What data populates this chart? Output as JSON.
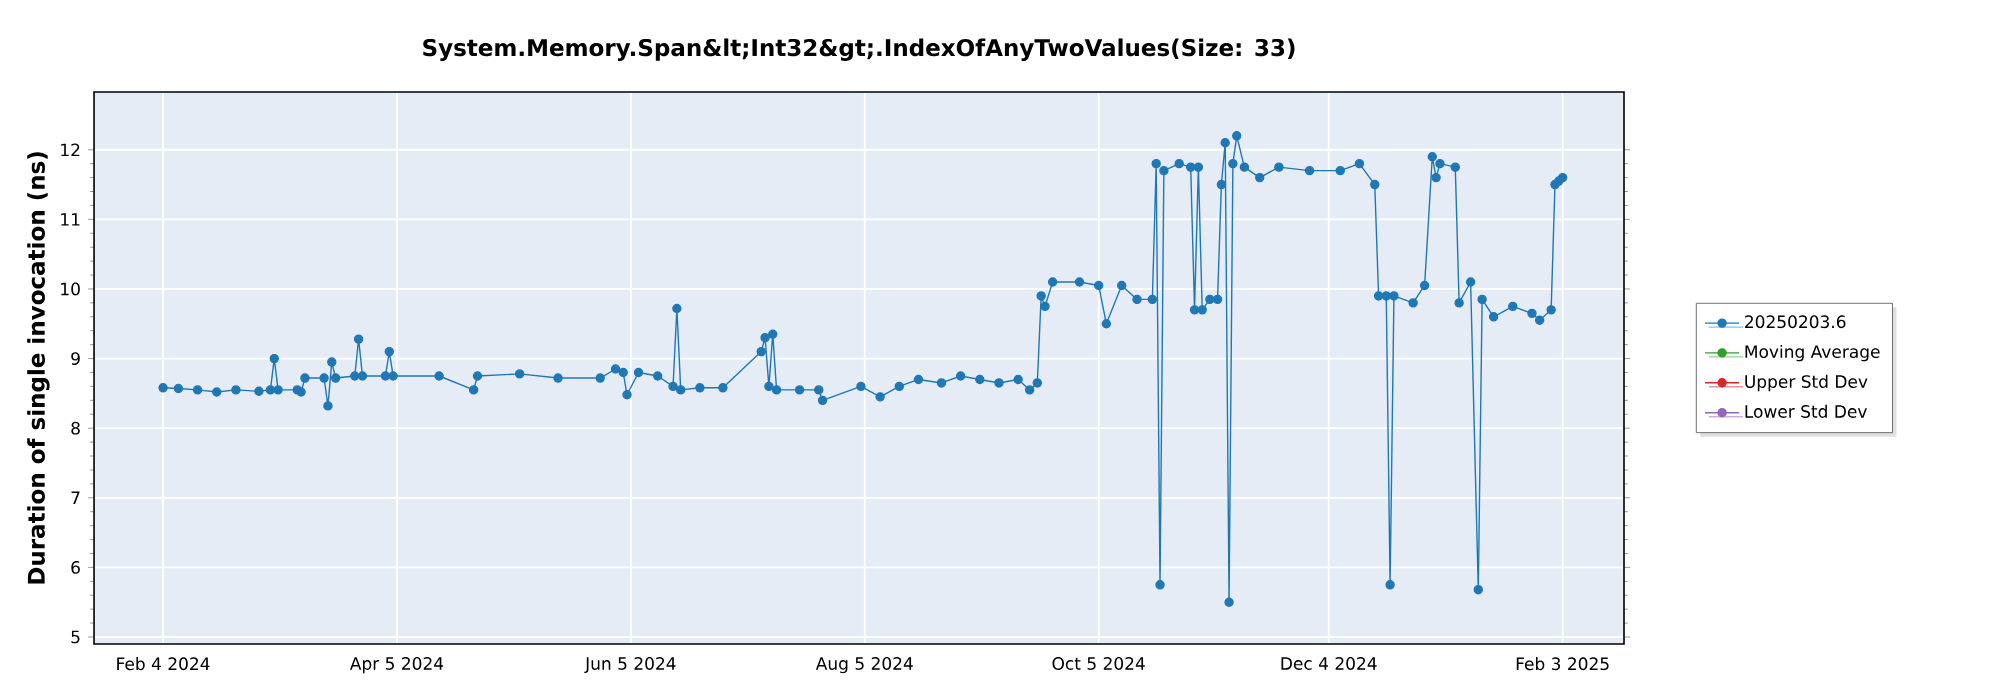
{
  "chart_data": {
    "type": "line",
    "title": "System.Memory.Span&lt;Int32&gt;.IndexOfAnyTwoValues(Size: 33)",
    "ylabel": "Duration of single invocation (ns)",
    "xlim": [
      "2024-01-17",
      "2025-02-19"
    ],
    "ylim": [
      4.9,
      12.83
    ],
    "xticks": [
      {
        "value": "2024-02-04",
        "label": "Feb 4 2024"
      },
      {
        "value": "2024-04-05",
        "label": "Apr 5 2024"
      },
      {
        "value": "2024-06-05",
        "label": "Jun 5 2024"
      },
      {
        "value": "2024-08-05",
        "label": "Aug 5 2024"
      },
      {
        "value": "2024-10-05",
        "label": "Oct 5 2024"
      },
      {
        "value": "2024-12-04",
        "label": "Dec 4 2024"
      },
      {
        "value": "2025-02-03",
        "label": "Feb 3 2025"
      }
    ],
    "yticks": [
      5,
      6,
      7,
      8,
      9,
      10,
      11,
      12
    ],
    "grid": true,
    "legend": "right",
    "marker": "circle",
    "line_style": "solid",
    "series": [
      {
        "name": "20250203.6",
        "color": "#1f77b4",
        "x": [
          "2024-02-04",
          "2024-02-08",
          "2024-02-13",
          "2024-02-18",
          "2024-02-23",
          "2024-02-29",
          "2024-03-03",
          "2024-03-04",
          "2024-03-05",
          "2024-03-10",
          "2024-03-11",
          "2024-03-12",
          "2024-03-17",
          "2024-03-18",
          "2024-03-19",
          "2024-03-20",
          "2024-03-25",
          "2024-03-26",
          "2024-03-27",
          "2024-04-02",
          "2024-04-03",
          "2024-04-04",
          "2024-04-16",
          "2024-04-25",
          "2024-04-26",
          "2024-05-07",
          "2024-05-17",
          "2024-05-28",
          "2024-06-01",
          "2024-06-03",
          "2024-06-04",
          "2024-06-07",
          "2024-06-12",
          "2024-06-16",
          "2024-06-17",
          "2024-06-18",
          "2024-06-23",
          "2024-06-29",
          "2024-07-09",
          "2024-07-10",
          "2024-07-11",
          "2024-07-12",
          "2024-07-13",
          "2024-07-19",
          "2024-07-24",
          "2024-07-25",
          "2024-08-04",
          "2024-08-09",
          "2024-08-14",
          "2024-08-19",
          "2024-08-25",
          "2024-08-30",
          "2024-09-04",
          "2024-09-09",
          "2024-09-14",
          "2024-09-17",
          "2024-09-19",
          "2024-09-20",
          "2024-09-21",
          "2024-09-23",
          "2024-09-30",
          "2024-10-05",
          "2024-10-07",
          "2024-10-11",
          "2024-10-15",
          "2024-10-19",
          "2024-10-20",
          "2024-10-21",
          "2024-10-22",
          "2024-10-26",
          "2024-10-29",
          "2024-10-30",
          "2024-10-31",
          "2024-11-01",
          "2024-11-03",
          "2024-11-05",
          "2024-11-06",
          "2024-11-07",
          "2024-11-08",
          "2024-11-09",
          "2024-11-10",
          "2024-11-12",
          "2024-11-16",
          "2024-11-21",
          "2024-11-29",
          "2024-12-07",
          "2024-12-12",
          "2024-12-16",
          "2024-12-17",
          "2024-12-19",
          "2024-12-20",
          "2024-12-21",
          "2024-12-26",
          "2024-12-29",
          "2024-12-31",
          "2025-01-01",
          "2025-01-02",
          "2025-01-06",
          "2025-01-07",
          "2025-01-10",
          "2025-01-12",
          "2025-01-13",
          "2025-01-16",
          "2025-01-21",
          "2025-01-26",
          "2025-01-28",
          "2025-01-31",
          "2025-02-01",
          "2025-02-02",
          "2025-02-03"
        ],
        "values": [
          8.58,
          8.57,
          8.55,
          8.52,
          8.55,
          8.53,
          8.55,
          9.0,
          8.55,
          8.55,
          8.52,
          8.72,
          8.72,
          8.32,
          8.95,
          8.72,
          8.75,
          9.28,
          8.75,
          8.75,
          9.1,
          8.75,
          8.75,
          8.55,
          8.75,
          8.78,
          8.72,
          8.72,
          8.85,
          8.8,
          8.48,
          8.8,
          8.75,
          8.6,
          9.72,
          8.55,
          8.58,
          8.58,
          9.1,
          9.3,
          8.6,
          9.35,
          8.55,
          8.55,
          8.55,
          8.4,
          8.6,
          8.45,
          8.6,
          8.7,
          8.65,
          8.75,
          8.7,
          8.65,
          8.7,
          8.55,
          8.65,
          9.9,
          9.75,
          10.1,
          10.1,
          10.05,
          9.5,
          10.05,
          9.85,
          9.85,
          11.8,
          5.75,
          11.7,
          11.8,
          11.75,
          9.7,
          11.75,
          9.7,
          9.85,
          9.85,
          11.5,
          12.1,
          5.5,
          11.8,
          12.2,
          11.75,
          11.6,
          11.75,
          11.7,
          11.7,
          11.8,
          11.5,
          9.9,
          9.9,
          5.75,
          9.9,
          9.8,
          10.05,
          11.9,
          11.6,
          11.8,
          11.75,
          9.8,
          10.1,
          5.68,
          9.85,
          9.6,
          9.75,
          9.65,
          9.55,
          9.7,
          11.5,
          11.55,
          11.6
        ]
      },
      {
        "name": "Moving Average",
        "color": "#2ca02c"
      },
      {
        "name": "Upper Std Dev",
        "color": "#d62728"
      },
      {
        "name": "Lower Std Dev",
        "color": "#9467bd"
      }
    ]
  }
}
